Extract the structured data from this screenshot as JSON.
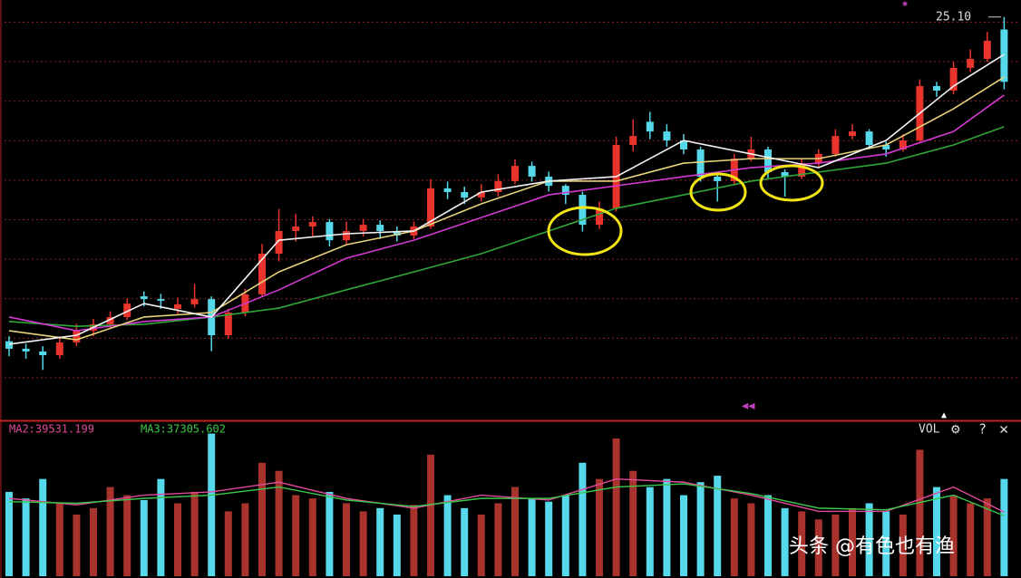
{
  "chart_data": {
    "type": "candlestick",
    "ylim": [
      9,
      25.6
    ],
    "up_color": "#e8342c",
    "down_color": "#54d8ea",
    "open": [
      12.1,
      11.8,
      11.69,
      11.54,
      12.05,
      12.52,
      12.78,
      13.07,
      13.9,
      13.79,
      13.4,
      13.58,
      13.79,
      12.34,
      13.25,
      13.98,
      15.61,
      16.52,
      16.7,
      16.88,
      16.15,
      16.52,
      16.77,
      16.52,
      16.34,
      16.7,
      18.23,
      18.08,
      17.86,
      18.08,
      18.52,
      19.13,
      18.7,
      18.33,
      17.97,
      16.77,
      17.43,
      19.97,
      20.9,
      20.51,
      20.15,
      19.79,
      18.7,
      18.52,
      19.42,
      19.79,
      18.88,
      18.7,
      19.24,
      19.61,
      20.33,
      20.51,
      19.97,
      19.79,
      20.15,
      22.33,
      22.15,
      23.06,
      23.42,
      24.6
    ],
    "high": [
      12.3,
      12.0,
      11.9,
      12.3,
      12.8,
      13.0,
      13.3,
      13.8,
      14.1,
      14.0,
      13.85,
      14.4,
      13.9,
      13.4,
      14.2,
      16.0,
      17.4,
      17.2,
      17.1,
      17.0,
      16.9,
      17.0,
      16.95,
      16.7,
      16.9,
      18.6,
      18.5,
      18.3,
      18.4,
      18.8,
      19.4,
      19.3,
      18.9,
      18.4,
      18.1,
      17.7,
      20.3,
      21.0,
      21.3,
      20.8,
      20.4,
      19.9,
      18.9,
      19.6,
      20.3,
      19.9,
      19.0,
      19.4,
      19.8,
      20.6,
      20.8,
      20.6,
      20.1,
      20.4,
      22.6,
      22.5,
      23.3,
      23.8,
      24.5,
      25.1
    ],
    "low": [
      11.5,
      11.4,
      10.95,
      11.4,
      11.9,
      12.3,
      12.6,
      12.95,
      13.5,
      13.4,
      13.2,
      13.45,
      11.7,
      12.2,
      13.1,
      13.9,
      15.3,
      16.1,
      16.3,
      15.9,
      16.0,
      16.3,
      16.2,
      16.1,
      16.2,
      16.6,
      17.8,
      17.6,
      17.7,
      17.9,
      18.4,
      18.5,
      18.1,
      17.6,
      16.5,
      16.6,
      17.3,
      19.7,
      20.2,
      19.9,
      19.6,
      18.5,
      17.7,
      18.4,
      19.3,
      18.6,
      17.9,
      18.6,
      19.1,
      19.5,
      20.2,
      19.8,
      19.5,
      19.7,
      20.1,
      21.9,
      22.0,
      22.9,
      23.3,
      22.2
    ],
    "close": [
      11.8,
      11.69,
      11.54,
      12.05,
      12.52,
      12.78,
      13.07,
      13.61,
      13.79,
      13.72,
      13.58,
      13.79,
      12.34,
      13.25,
      13.98,
      15.61,
      16.52,
      16.7,
      16.88,
      16.15,
      16.52,
      16.77,
      16.52,
      16.34,
      16.7,
      18.23,
      18.08,
      17.86,
      18.08,
      18.52,
      19.13,
      18.7,
      18.33,
      17.97,
      16.77,
      17.43,
      19.97,
      20.33,
      20.51,
      20.15,
      19.79,
      18.7,
      18.52,
      19.42,
      19.79,
      18.88,
      18.7,
      19.24,
      19.61,
      20.33,
      20.51,
      19.97,
      19.79,
      20.15,
      22.33,
      22.15,
      23.06,
      23.42,
      24.15,
      22.5
    ],
    "ma_x": [
      0,
      4,
      8,
      12,
      16,
      20,
      24,
      28,
      32,
      36,
      40,
      44,
      48,
      52,
      56,
      59
    ],
    "ma_lines": [
      {
        "color": "#2fa63a",
        "values": [
          12.89,
          12.7,
          12.78,
          13.07,
          13.43,
          14.16,
          14.88,
          15.61,
          16.52,
          17.43,
          17.97,
          18.52,
          18.88,
          19.24,
          19.97,
          20.7
        ]
      },
      {
        "color": "#d23ad2",
        "values": [
          13.07,
          12.52,
          12.89,
          13.07,
          14.16,
          15.43,
          16.15,
          17.06,
          17.97,
          18.33,
          18.7,
          19.06,
          19.24,
          19.61,
          20.51,
          21.97
        ]
      },
      {
        "color": "#e6d27a",
        "values": [
          12.52,
          12.16,
          13.07,
          13.25,
          14.88,
          15.97,
          16.52,
          17.61,
          18.52,
          18.52,
          19.24,
          19.42,
          19.42,
          19.97,
          21.42,
          22.69
        ]
      },
      {
        "color": "#f2f2f2",
        "values": [
          11.98,
          12.34,
          13.61,
          13.07,
          16.15,
          16.41,
          16.52,
          18.08,
          18.52,
          18.7,
          20.15,
          19.61,
          19.06,
          20.15,
          22.33,
          23.6
        ]
      }
    ],
    "high_marker": {
      "value": 25.1,
      "label": "25.10"
    },
    "volume": {
      "ylim": [
        0,
        90000
      ],
      "indicator": "VOL",
      "values": [
        52000,
        48000,
        60000,
        45000,
        38000,
        42000,
        55000,
        50000,
        47000,
        60000,
        45000,
        52000,
        88000,
        40000,
        45000,
        70000,
        65000,
        50000,
        48000,
        52000,
        45000,
        40000,
        42000,
        38000,
        44000,
        75000,
        50000,
        42000,
        38000,
        45000,
        55000,
        48000,
        46000,
        50000,
        70000,
        60000,
        85000,
        65000,
        55000,
        60000,
        50000,
        58000,
        62000,
        48000,
        45000,
        50000,
        42000,
        40000,
        35000,
        38000,
        42000,
        45000,
        40000,
        38000,
        78000,
        55000,
        50000,
        45000,
        48000,
        60000
      ],
      "ma_lines": [
        {
          "label": "MA2:39531.199",
          "color": "#e04a9a",
          "values": [
            48000,
            44000,
            50000,
            52000,
            58000,
            48000,
            42000,
            50000,
            47000,
            60000,
            58000,
            50000,
            40000,
            40000,
            55000,
            39531.199
          ]
        },
        {
          "label": "MA3:37305.602",
          "color": "#3cc84a",
          "values": [
            46000,
            45000,
            48000,
            50000,
            55000,
            47000,
            43000,
            48000,
            48000,
            55000,
            57000,
            51000,
            42000,
            41000,
            50000,
            37305.602
          ]
        }
      ]
    },
    "watermark": "头条 @有色也有渔"
  }
}
